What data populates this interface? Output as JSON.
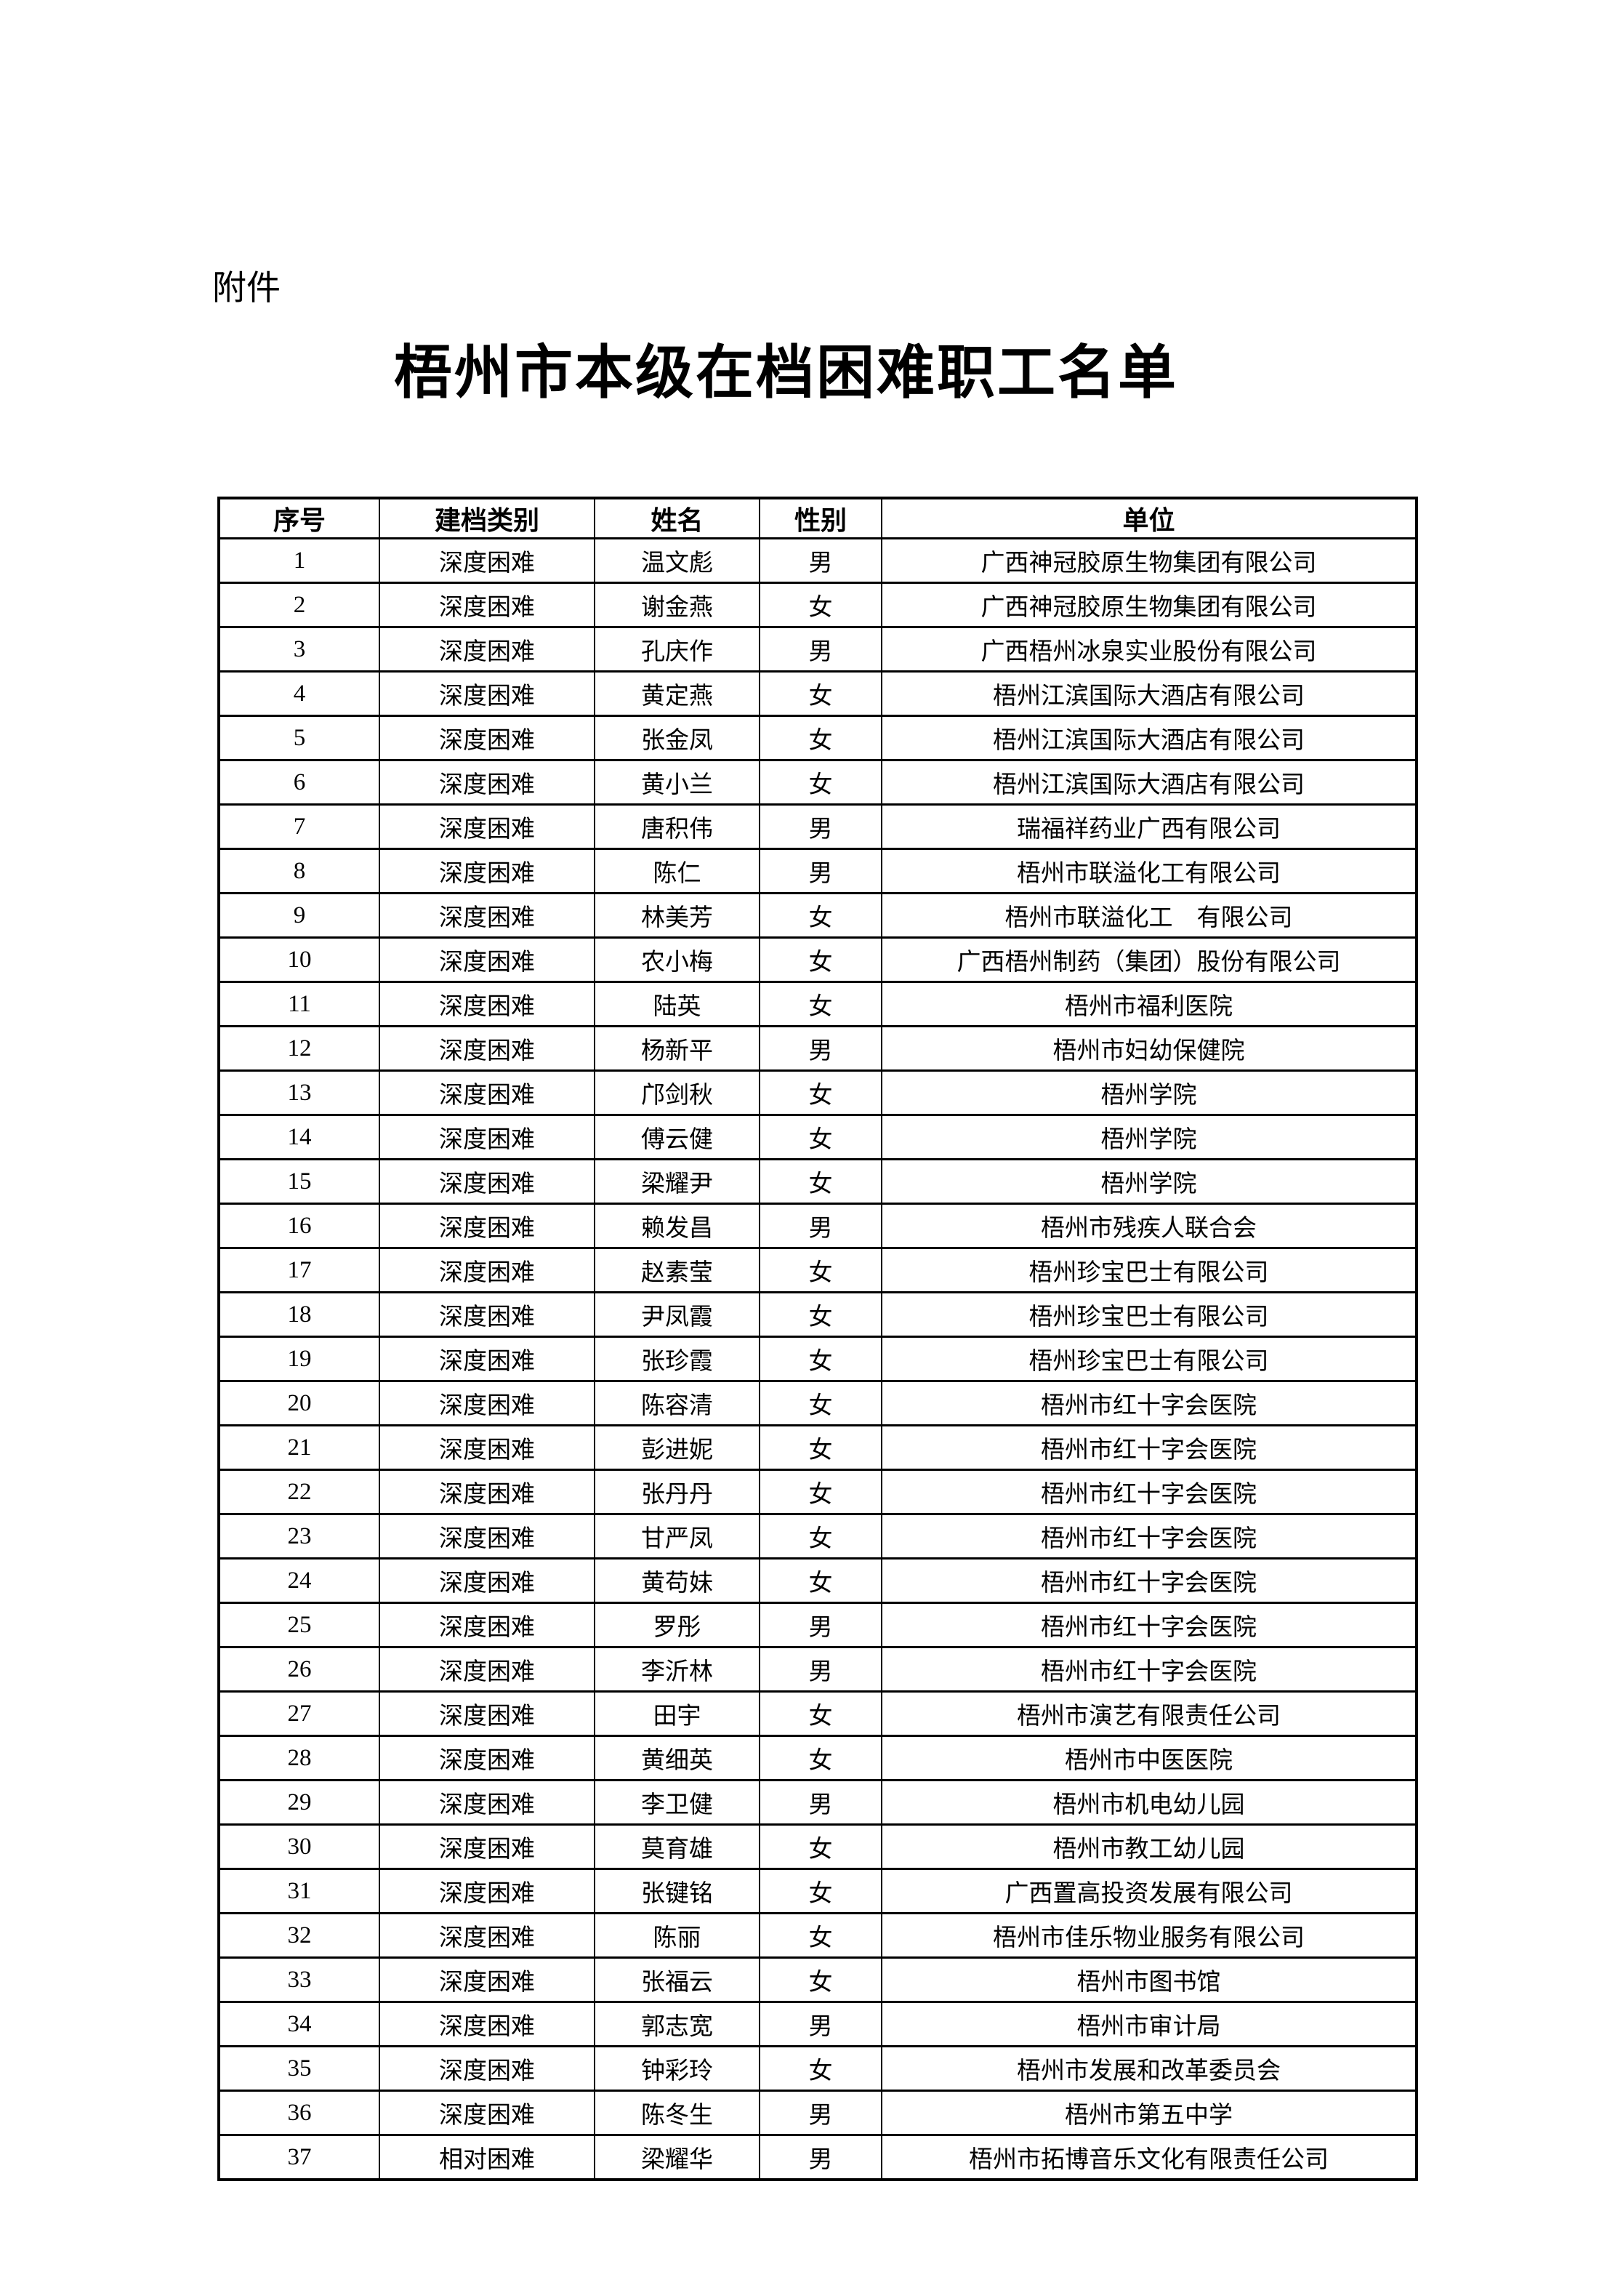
{
  "page": {
    "attachment_label": "附件",
    "title": "梧州市本级在档困难职工名单"
  },
  "table": {
    "headers": [
      "序号",
      "建档类别",
      "姓名",
      "性别",
      "单位"
    ],
    "rows": [
      {
        "no": "1",
        "category": "深度困难",
        "name": "温文彪",
        "gender": "男",
        "unit": "广西神冠胶原生物集团有限公司"
      },
      {
        "no": "2",
        "category": "深度困难",
        "name": "谢金燕",
        "gender": "女",
        "unit": "广西神冠胶原生物集团有限公司"
      },
      {
        "no": "3",
        "category": "深度困难",
        "name": "孔庆作",
        "gender": "男",
        "unit": "广西梧州冰泉实业股份有限公司"
      },
      {
        "no": "4",
        "category": "深度困难",
        "name": "黄定燕",
        "gender": "女",
        "unit": "梧州江滨国际大酒店有限公司"
      },
      {
        "no": "5",
        "category": "深度困难",
        "name": "张金凤",
        "gender": "女",
        "unit": "梧州江滨国际大酒店有限公司"
      },
      {
        "no": "6",
        "category": "深度困难",
        "name": "黄小兰",
        "gender": "女",
        "unit": "梧州江滨国际大酒店有限公司"
      },
      {
        "no": "7",
        "category": "深度困难",
        "name": "唐积伟",
        "gender": "男",
        "unit": "瑞福祥药业广西有限公司"
      },
      {
        "no": "8",
        "category": "深度困难",
        "name": "陈仁",
        "gender": "男",
        "unit": "梧州市联溢化工有限公司"
      },
      {
        "no": "9",
        "category": "深度困难",
        "name": "林美芳",
        "gender": "女",
        "unit": "梧州市联溢化工　有限公司"
      },
      {
        "no": "10",
        "category": "深度困难",
        "name": "农小梅",
        "gender": "女",
        "unit": "广西梧州制药（集团）股份有限公司"
      },
      {
        "no": "11",
        "category": "深度困难",
        "name": "陆英",
        "gender": "女",
        "unit": "梧州市福利医院"
      },
      {
        "no": "12",
        "category": "深度困难",
        "name": "杨新平",
        "gender": "男",
        "unit": "梧州市妇幼保健院"
      },
      {
        "no": "13",
        "category": "深度困难",
        "name": "邝剑秋",
        "gender": "女",
        "unit": "梧州学院"
      },
      {
        "no": "14",
        "category": "深度困难",
        "name": "傅云健",
        "gender": "女",
        "unit": "梧州学院"
      },
      {
        "no": "15",
        "category": "深度困难",
        "name": "梁耀尹",
        "gender": "女",
        "unit": "梧州学院"
      },
      {
        "no": "16",
        "category": "深度困难",
        "name": "赖发昌",
        "gender": "男",
        "unit": "梧州市残疾人联合会"
      },
      {
        "no": "17",
        "category": "深度困难",
        "name": "赵素莹",
        "gender": "女",
        "unit": "梧州珍宝巴士有限公司"
      },
      {
        "no": "18",
        "category": "深度困难",
        "name": "尹凤霞",
        "gender": "女",
        "unit": "梧州珍宝巴士有限公司"
      },
      {
        "no": "19",
        "category": "深度困难",
        "name": "张珍霞",
        "gender": "女",
        "unit": "梧州珍宝巴士有限公司"
      },
      {
        "no": "20",
        "category": "深度困难",
        "name": "陈容清",
        "gender": "女",
        "unit": "梧州市红十字会医院"
      },
      {
        "no": "21",
        "category": "深度困难",
        "name": "彭进妮",
        "gender": "女",
        "unit": "梧州市红十字会医院"
      },
      {
        "no": "22",
        "category": "深度困难",
        "name": "张丹丹",
        "gender": "女",
        "unit": "梧州市红十字会医院"
      },
      {
        "no": "23",
        "category": "深度困难",
        "name": "甘严凤",
        "gender": "女",
        "unit": "梧州市红十字会医院"
      },
      {
        "no": "24",
        "category": "深度困难",
        "name": "黄苟妹",
        "gender": "女",
        "unit": "梧州市红十字会医院"
      },
      {
        "no": "25",
        "category": "深度困难",
        "name": "罗彤",
        "gender": "男",
        "unit": "梧州市红十字会医院"
      },
      {
        "no": "26",
        "category": "深度困难",
        "name": "李沂林",
        "gender": "男",
        "unit": "梧州市红十字会医院"
      },
      {
        "no": "27",
        "category": "深度困难",
        "name": "田宇",
        "gender": "女",
        "unit": "梧州市演艺有限责任公司"
      },
      {
        "no": "28",
        "category": "深度困难",
        "name": "黄细英",
        "gender": "女",
        "unit": "梧州市中医医院"
      },
      {
        "no": "29",
        "category": "深度困难",
        "name": "李卫健",
        "gender": "男",
        "unit": "梧州市机电幼儿园"
      },
      {
        "no": "30",
        "category": "深度困难",
        "name": "莫育雄",
        "gender": "女",
        "unit": "梧州市教工幼儿园"
      },
      {
        "no": "31",
        "category": "深度困难",
        "name": "张键铭",
        "gender": "女",
        "unit": "广西置高投资发展有限公司"
      },
      {
        "no": "32",
        "category": "深度困难",
        "name": "陈丽",
        "gender": "女",
        "unit": "梧州市佳乐物业服务有限公司"
      },
      {
        "no": "33",
        "category": "深度困难",
        "name": "张福云",
        "gender": "女",
        "unit": "梧州市图书馆"
      },
      {
        "no": "34",
        "category": "深度困难",
        "name": "郭志宽",
        "gender": "男",
        "unit": "梧州市审计局"
      },
      {
        "no": "35",
        "category": "深度困难",
        "name": "钟彩玲",
        "gender": "女",
        "unit": "梧州市发展和改革委员会"
      },
      {
        "no": "36",
        "category": "深度困难",
        "name": "陈冬生",
        "gender": "男",
        "unit": "梧州市第五中学"
      },
      {
        "no": "37",
        "category": "相对困难",
        "name": "梁耀华",
        "gender": "男",
        "unit": "梧州市拓博音乐文化有限责任公司"
      }
    ]
  }
}
